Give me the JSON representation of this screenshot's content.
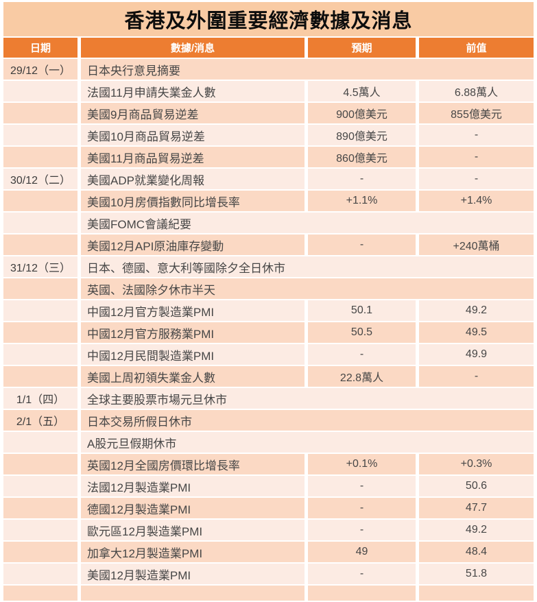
{
  "title": "香港及外圍重要經濟數據及消息",
  "columns": {
    "date": "日期",
    "item": "數據/消息",
    "expected": "預期",
    "previous": "前值"
  },
  "colors": {
    "header_bg": "#ED7D31",
    "header_text": "#FFFFFF",
    "title_bg": "#F9CBA4",
    "row_dark": "#FBD9C4",
    "row_light": "#FCEBE3",
    "body_text": "#464646"
  },
  "rows": [
    {
      "date": "29/12（一）",
      "item": "日本央行意見摘要",
      "expected": "",
      "previous": "",
      "merged": true
    },
    {
      "date": "",
      "item": "法國11月申請失業金人數",
      "expected": "4.5萬人",
      "previous": "6.88萬人",
      "merged": false
    },
    {
      "date": "",
      "item": "美國9月商品貿易逆差",
      "expected": "900億美元",
      "previous": "855億美元",
      "merged": false
    },
    {
      "date": "",
      "item": "美國10月商品貿易逆差",
      "expected": "890億美元",
      "previous": "-",
      "merged": false
    },
    {
      "date": "",
      "item": "美國11月商品貿易逆差",
      "expected": "860億美元",
      "previous": "-",
      "merged": false
    },
    {
      "date": "30/12（二）",
      "item": "美國ADP就業變化周報",
      "expected": "-",
      "previous": "-",
      "merged": false
    },
    {
      "date": "",
      "item": "美國10月房價指數同比增長率",
      "expected": "+1.1%",
      "previous": "+1.4%",
      "merged": false
    },
    {
      "date": "",
      "item": "美國FOMC會議紀要",
      "expected": "",
      "previous": "",
      "merged": true
    },
    {
      "date": "",
      "item": "美國12月API原油庫存變動",
      "expected": "-",
      "previous": "+240萬桶",
      "merged": false
    },
    {
      "date": "31/12（三）",
      "item": "日本、德國、意大利等國除夕全日休市",
      "expected": "",
      "previous": "",
      "merged": true
    },
    {
      "date": "",
      "item": "英國、法國除夕休市半天",
      "expected": "",
      "previous": "",
      "merged": true
    },
    {
      "date": "",
      "item": "中國12月官方製造業PMI",
      "expected": "50.1",
      "previous": "49.2",
      "merged": false
    },
    {
      "date": "",
      "item": "中國12月官方服務業PMI",
      "expected": "50.5",
      "previous": "49.5",
      "merged": false
    },
    {
      "date": "",
      "item": "中國12月民間製造業PMI",
      "expected": "-",
      "previous": "49.9",
      "merged": false
    },
    {
      "date": "",
      "item": "美國上周初領失業金人數",
      "expected": "22.8萬人",
      "previous": "-",
      "merged": false
    },
    {
      "date": "1/1（四）",
      "item": "全球主要股票市場元旦休市",
      "expected": "",
      "previous": "",
      "merged": true
    },
    {
      "date": "2/1（五）",
      "item": "日本交易所假日休市",
      "expected": "",
      "previous": "",
      "merged": true
    },
    {
      "date": "",
      "item": "A股元旦假期休市",
      "expected": "",
      "previous": "",
      "merged": true
    },
    {
      "date": "",
      "item": "英國12月全國房價環比增長率",
      "expected": "+0.1%",
      "previous": "+0.3%",
      "merged": false
    },
    {
      "date": "",
      "item": "法國12月製造業PMI",
      "expected": "-",
      "previous": "50.6",
      "merged": false
    },
    {
      "date": "",
      "item": "德國12月製造業PMI",
      "expected": "-",
      "previous": "47.7",
      "merged": false
    },
    {
      "date": "",
      "item": "歐元區12月製造業PMI",
      "expected": "-",
      "previous": "49.2",
      "merged": false
    },
    {
      "date": "",
      "item": "加拿大12月製造業PMI",
      "expected": "49",
      "previous": "48.4",
      "merged": false
    },
    {
      "date": "",
      "item": "美國12月製造業PMI",
      "expected": "-",
      "previous": "51.8",
      "merged": false
    }
  ]
}
